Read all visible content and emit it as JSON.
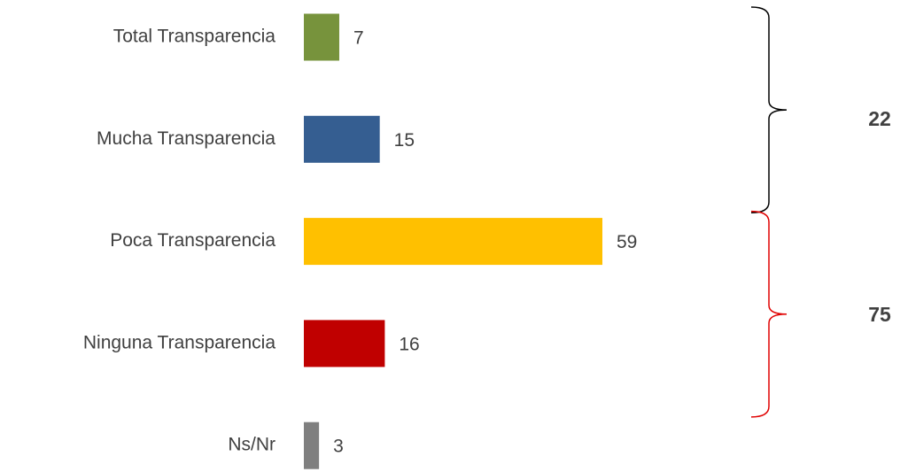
{
  "chart_data": {
    "type": "bar",
    "orientation": "horizontal",
    "categories": [
      "Total Transparencia",
      "Mucha Transparencia",
      "Poca Transparencia",
      "Ninguna Transparencia",
      "Ns/Nr"
    ],
    "values": [
      7,
      15,
      59,
      16,
      3
    ],
    "colors": [
      "#77933c",
      "#355e91",
      "#ffc000",
      "#c00000",
      "#7f7f7f"
    ],
    "groups": [
      {
        "value": 22,
        "color": "#000000"
      },
      {
        "value": 75,
        "color": "#e00000"
      }
    ]
  }
}
